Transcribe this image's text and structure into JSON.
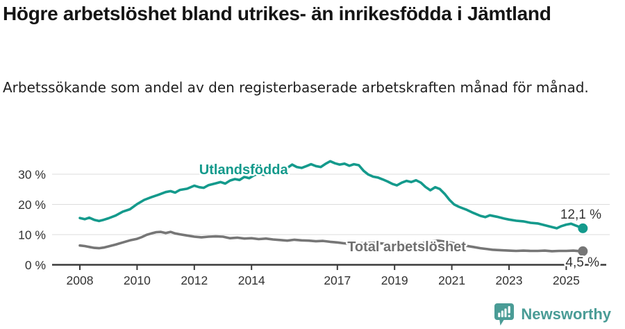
{
  "header": {
    "title": "Högre arbetslöshet bland utrikes- än inrikesfödda i Jämtland",
    "subtitle": "Arbetssökande som andel av den registerbaserade arbetskraften månad för månad."
  },
  "chart_data": {
    "type": "line",
    "title": "Högre arbetslöshet bland utrikes- än inrikesfödda i Jämtland",
    "subtitle": "Arbetssökande som andel av den registerbaserade arbetskraften månad för månad.",
    "xlabel": "",
    "ylabel": "",
    "x_domain": [
      2008.0,
      2025.58
    ],
    "ylim": [
      0,
      35
    ],
    "grid": "horizontal",
    "legend_position": "inline-labels",
    "y_ticks": [
      {
        "value": 0,
        "label": "0 %"
      },
      {
        "value": 10,
        "label": "10 %"
      },
      {
        "value": 20,
        "label": "20 %"
      },
      {
        "value": 30,
        "label": "30 %"
      }
    ],
    "x_ticks": [
      {
        "value": 2008,
        "label": "2008"
      },
      {
        "value": 2010,
        "label": "2010"
      },
      {
        "value": 2012,
        "label": "2012"
      },
      {
        "value": 2014,
        "label": "2014"
      },
      {
        "value": 2017,
        "label": "2017"
      },
      {
        "value": 2019,
        "label": "2019"
      },
      {
        "value": 2021,
        "label": "2021"
      },
      {
        "value": 2023,
        "label": "2023"
      },
      {
        "value": 2025,
        "label": "2025"
      }
    ],
    "series": [
      {
        "name": "Utlandsfödda",
        "color": "#149a8c",
        "end_label": "12,1 %",
        "end_value": 12.1,
        "points": [
          [
            2008.0,
            15.5
          ],
          [
            2008.17,
            15.1
          ],
          [
            2008.33,
            15.6
          ],
          [
            2008.5,
            14.9
          ],
          [
            2008.67,
            14.5
          ],
          [
            2008.83,
            14.9
          ],
          [
            2009.0,
            15.4
          ],
          [
            2009.25,
            16.3
          ],
          [
            2009.5,
            17.6
          ],
          [
            2009.75,
            18.4
          ],
          [
            2010.0,
            20.1
          ],
          [
            2010.25,
            21.5
          ],
          [
            2010.5,
            22.4
          ],
          [
            2010.75,
            23.2
          ],
          [
            2011.0,
            24.1
          ],
          [
            2011.17,
            24.4
          ],
          [
            2011.33,
            23.9
          ],
          [
            2011.5,
            24.8
          ],
          [
            2011.75,
            25.2
          ],
          [
            2012.0,
            26.2
          ],
          [
            2012.17,
            25.7
          ],
          [
            2012.33,
            25.5
          ],
          [
            2012.5,
            26.4
          ],
          [
            2012.75,
            27.0
          ],
          [
            2012.92,
            27.4
          ],
          [
            2013.08,
            26.9
          ],
          [
            2013.25,
            27.9
          ],
          [
            2013.42,
            28.4
          ],
          [
            2013.58,
            28.1
          ],
          [
            2013.75,
            29.1
          ],
          [
            2013.92,
            28.7
          ],
          [
            2014.08,
            29.6
          ],
          [
            2014.25,
            30.2
          ],
          [
            2014.42,
            29.8
          ],
          [
            2014.58,
            30.0
          ],
          [
            2014.75,
            30.6
          ],
          [
            2014.92,
            30.2
          ],
          [
            2015.08,
            31.2
          ],
          [
            2015.25,
            32.1
          ],
          [
            2015.42,
            33.2
          ],
          [
            2015.58,
            32.4
          ],
          [
            2015.75,
            32.1
          ],
          [
            2015.92,
            32.7
          ],
          [
            2016.08,
            33.3
          ],
          [
            2016.25,
            32.7
          ],
          [
            2016.42,
            32.4
          ],
          [
            2016.58,
            33.4
          ],
          [
            2016.75,
            34.3
          ],
          [
            2016.92,
            33.6
          ],
          [
            2017.08,
            33.2
          ],
          [
            2017.25,
            33.5
          ],
          [
            2017.42,
            32.8
          ],
          [
            2017.58,
            33.3
          ],
          [
            2017.75,
            33.0
          ],
          [
            2017.92,
            31.1
          ],
          [
            2018.08,
            29.9
          ],
          [
            2018.25,
            29.2
          ],
          [
            2018.42,
            28.9
          ],
          [
            2018.58,
            28.3
          ],
          [
            2018.75,
            27.6
          ],
          [
            2018.92,
            26.8
          ],
          [
            2019.08,
            26.3
          ],
          [
            2019.25,
            27.2
          ],
          [
            2019.42,
            27.8
          ],
          [
            2019.58,
            27.4
          ],
          [
            2019.75,
            28.0
          ],
          [
            2019.92,
            27.2
          ],
          [
            2020.08,
            25.8
          ],
          [
            2020.25,
            24.7
          ],
          [
            2020.42,
            25.7
          ],
          [
            2020.58,
            25.1
          ],
          [
            2020.75,
            23.5
          ],
          [
            2020.92,
            21.5
          ],
          [
            2021.08,
            20.0
          ],
          [
            2021.25,
            19.2
          ],
          [
            2021.5,
            18.3
          ],
          [
            2021.75,
            17.2
          ],
          [
            2022.0,
            16.2
          ],
          [
            2022.17,
            15.8
          ],
          [
            2022.33,
            16.4
          ],
          [
            2022.58,
            15.9
          ],
          [
            2022.83,
            15.3
          ],
          [
            2023.0,
            15.0
          ],
          [
            2023.25,
            14.6
          ],
          [
            2023.5,
            14.4
          ],
          [
            2023.75,
            13.9
          ],
          [
            2024.0,
            13.7
          ],
          [
            2024.25,
            13.1
          ],
          [
            2024.5,
            12.5
          ],
          [
            2024.67,
            12.1
          ],
          [
            2024.83,
            12.8
          ],
          [
            2025.0,
            13.3
          ],
          [
            2025.17,
            13.6
          ],
          [
            2025.33,
            13.0
          ],
          [
            2025.5,
            12.4
          ],
          [
            2025.58,
            12.1
          ]
        ],
        "label_pos": {
          "x": 2012.17,
          "y": 30.0
        }
      },
      {
        "name": "Total arbetslöshet",
        "color": "#767676",
        "end_label": "4,5 %",
        "end_value": 4.5,
        "points": [
          [
            2008.0,
            6.4
          ],
          [
            2008.17,
            6.2
          ],
          [
            2008.33,
            5.9
          ],
          [
            2008.5,
            5.6
          ],
          [
            2008.67,
            5.5
          ],
          [
            2008.83,
            5.7
          ],
          [
            2009.0,
            6.1
          ],
          [
            2009.25,
            6.7
          ],
          [
            2009.5,
            7.4
          ],
          [
            2009.75,
            8.1
          ],
          [
            2010.0,
            8.6
          ],
          [
            2010.17,
            9.2
          ],
          [
            2010.33,
            9.9
          ],
          [
            2010.5,
            10.4
          ],
          [
            2010.67,
            10.8
          ],
          [
            2010.83,
            10.9
          ],
          [
            2011.0,
            10.5
          ],
          [
            2011.17,
            10.9
          ],
          [
            2011.33,
            10.4
          ],
          [
            2011.5,
            10.1
          ],
          [
            2011.75,
            9.7
          ],
          [
            2012.0,
            9.3
          ],
          [
            2012.25,
            9.1
          ],
          [
            2012.5,
            9.3
          ],
          [
            2012.75,
            9.4
          ],
          [
            2013.0,
            9.3
          ],
          [
            2013.25,
            8.8
          ],
          [
            2013.5,
            9.0
          ],
          [
            2013.75,
            8.7
          ],
          [
            2014.0,
            8.8
          ],
          [
            2014.25,
            8.5
          ],
          [
            2014.5,
            8.7
          ],
          [
            2014.75,
            8.4
          ],
          [
            2015.0,
            8.2
          ],
          [
            2015.25,
            8.0
          ],
          [
            2015.5,
            8.3
          ],
          [
            2015.75,
            8.1
          ],
          [
            2016.0,
            8.0
          ],
          [
            2016.25,
            7.8
          ],
          [
            2016.5,
            7.9
          ],
          [
            2016.75,
            7.6
          ],
          [
            2017.0,
            7.4
          ],
          [
            2017.25,
            7.1
          ],
          [
            2017.5,
            6.9
          ],
          [
            2017.75,
            7.1
          ],
          [
            2018.0,
            7.2
          ],
          [
            2018.25,
            7.3
          ],
          [
            2018.5,
            7.1
          ],
          [
            2018.75,
            6.9
          ],
          [
            2019.0,
            7.0
          ],
          [
            2019.25,
            6.8
          ],
          [
            2019.5,
            6.9
          ],
          [
            2019.75,
            7.0
          ],
          [
            2020.0,
            7.2
          ],
          [
            2020.25,
            7.8
          ],
          [
            2020.5,
            8.0
          ],
          [
            2020.75,
            7.7
          ],
          [
            2021.0,
            7.3
          ],
          [
            2021.25,
            6.8
          ],
          [
            2021.5,
            6.3
          ],
          [
            2021.75,
            5.9
          ],
          [
            2022.0,
            5.5
          ],
          [
            2022.25,
            5.2
          ],
          [
            2022.42,
            5.0
          ],
          [
            2022.58,
            4.9
          ],
          [
            2022.75,
            4.8
          ],
          [
            2023.0,
            4.7
          ],
          [
            2023.25,
            4.6
          ],
          [
            2023.5,
            4.7
          ],
          [
            2023.75,
            4.6
          ],
          [
            2024.0,
            4.6
          ],
          [
            2024.25,
            4.7
          ],
          [
            2024.5,
            4.5
          ],
          [
            2024.75,
            4.6
          ],
          [
            2025.0,
            4.6
          ],
          [
            2025.25,
            4.7
          ],
          [
            2025.5,
            4.5
          ],
          [
            2025.58,
            4.5
          ]
        ],
        "label_pos": {
          "x": 2017.35,
          "y": 4.5
        }
      }
    ],
    "colors": {
      "foreign_born_line": "#149a8c",
      "total_line": "#767676",
      "grid": "#dcdcdc",
      "axis": "#3a3a3a",
      "text": "#333333"
    }
  },
  "footer": {
    "brand": "Newsworthy",
    "brand_color": "#4a9c96"
  }
}
